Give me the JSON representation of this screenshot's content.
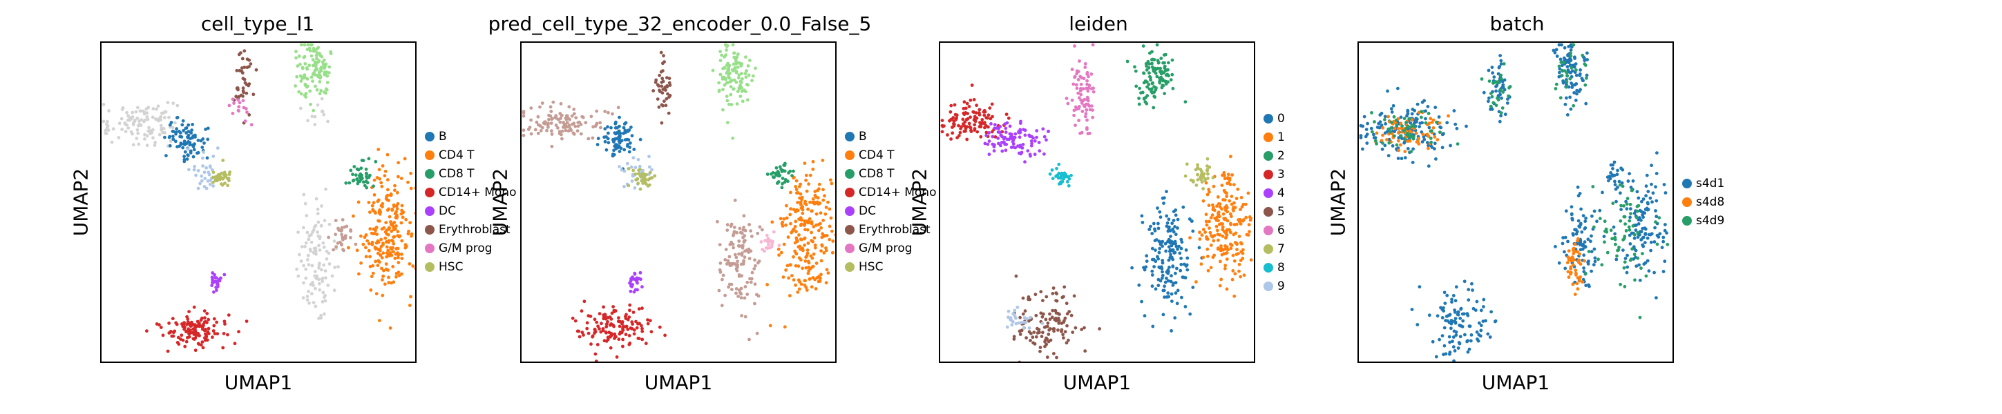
{
  "figure": {
    "panels": [
      {
        "title": "cell_type_l1",
        "xlabel": "UMAP1",
        "ylabel": "UMAP2",
        "legend": [
          {
            "label": "B",
            "color": "#1f77b4"
          },
          {
            "label": "CD4 T",
            "color": "#ff7f0e"
          },
          {
            "label": "CD8 T",
            "color": "#279e68"
          },
          {
            "label": "CD14+ Mono",
            "color": "#d62728"
          },
          {
            "label": "DC",
            "color": "#aa40fc"
          },
          {
            "label": "Erythroblast",
            "color": "#8c564b"
          },
          {
            "label": "G/M prog",
            "color": "#e377c2"
          },
          {
            "label": "HSC",
            "color": "#b5bd61"
          }
        ]
      },
      {
        "title": "pred_cell_type_32_encoder_0.0_False_5",
        "xlabel": "UMAP1",
        "ylabel": "UMAP2",
        "legend": [
          {
            "label": "B",
            "color": "#1f77b4"
          },
          {
            "label": "CD4 T",
            "color": "#ff7f0e"
          },
          {
            "label": "CD8 T",
            "color": "#279e68"
          },
          {
            "label": "CD14+ Mono",
            "color": "#d62728"
          },
          {
            "label": "DC",
            "color": "#aa40fc"
          },
          {
            "label": "Erythroblast",
            "color": "#8c564b"
          },
          {
            "label": "G/M prog",
            "color": "#e377c2"
          },
          {
            "label": "HSC",
            "color": "#b5bd61"
          }
        ]
      },
      {
        "title": "leiden",
        "xlabel": "UMAP1",
        "ylabel": "UMAP2",
        "legend": [
          {
            "label": "0",
            "color": "#1f77b4"
          },
          {
            "label": "1",
            "color": "#ff7f0e"
          },
          {
            "label": "2",
            "color": "#279e68"
          },
          {
            "label": "3",
            "color": "#d62728"
          },
          {
            "label": "4",
            "color": "#aa40fc"
          },
          {
            "label": "5",
            "color": "#8c564b"
          },
          {
            "label": "6",
            "color": "#e377c2"
          },
          {
            "label": "7",
            "color": "#b5bd61"
          },
          {
            "label": "8",
            "color": "#17becf"
          },
          {
            "label": "9",
            "color": "#aec7e8"
          }
        ]
      },
      {
        "title": "batch",
        "xlabel": "UMAP1",
        "ylabel": "UMAP2",
        "legend": [
          {
            "label": "s4d1",
            "color": "#1f77b4"
          },
          {
            "label": "s4d8",
            "color": "#ff7f0e"
          },
          {
            "label": "s4d9",
            "color": "#279e68"
          }
        ]
      }
    ]
  },
  "chart_data": [
    {
      "type": "scatter",
      "title": "cell_type_l1",
      "xlabel": "UMAP1",
      "ylabel": "UMAP2",
      "grid": false,
      "legend_position": "right",
      "clusters": [
        {
          "label": "unlabeled",
          "color": "#d3d3d3",
          "cx": 0.12,
          "cy": 0.75,
          "sx": 0.06,
          "sy": 0.03,
          "n": 110
        },
        {
          "label": "unlabeled",
          "color": "#d3d3d3",
          "cx": 0.68,
          "cy": 0.32,
          "sx": 0.03,
          "sy": 0.08,
          "n": 110
        },
        {
          "label": "unlabeled",
          "color": "#d3d3d3",
          "cx": 0.68,
          "cy": 0.78,
          "sx": 0.02,
          "sy": 0.02,
          "n": 12
        },
        {
          "label": "B",
          "color": "#1f77b4",
          "cx": 0.27,
          "cy": 0.7,
          "sx": 0.03,
          "sy": 0.03,
          "n": 80
        },
        {
          "label": "B",
          "color": "#aec7e8",
          "cx": 0.33,
          "cy": 0.6,
          "sx": 0.03,
          "sy": 0.03,
          "n": 30
        },
        {
          "label": "CD4 T",
          "color": "#ff7f0e",
          "cx": 0.9,
          "cy": 0.4,
          "sx": 0.04,
          "sy": 0.1,
          "n": 230
        },
        {
          "label": "CD8 T",
          "color": "#279e68",
          "cx": 0.82,
          "cy": 0.59,
          "sx": 0.02,
          "sy": 0.02,
          "n": 40
        },
        {
          "label": "CD8 T",
          "color": "#98df8a",
          "cx": 0.67,
          "cy": 0.91,
          "sx": 0.03,
          "sy": 0.05,
          "n": 110
        },
        {
          "label": "CD14+ Mono",
          "color": "#d62728",
          "cx": 0.3,
          "cy": 0.11,
          "sx": 0.06,
          "sy": 0.03,
          "n": 130
        },
        {
          "label": "DC",
          "color": "#aa40fc",
          "cx": 0.36,
          "cy": 0.26,
          "sx": 0.01,
          "sy": 0.015,
          "n": 25
        },
        {
          "label": "Erythroblast",
          "color": "#8c564b",
          "cx": 0.45,
          "cy": 0.87,
          "sx": 0.015,
          "sy": 0.05,
          "n": 40
        },
        {
          "label": "Erythroblast",
          "color": "#c49c94",
          "cx": 0.76,
          "cy": 0.4,
          "sx": 0.02,
          "sy": 0.03,
          "n": 30
        },
        {
          "label": "G/M prog",
          "color": "#e377c2",
          "cx": 0.44,
          "cy": 0.8,
          "sx": 0.015,
          "sy": 0.02,
          "n": 15
        },
        {
          "label": "HSC",
          "color": "#b5bd61",
          "cx": 0.38,
          "cy": 0.58,
          "sx": 0.015,
          "sy": 0.015,
          "n": 35
        }
      ]
    },
    {
      "type": "scatter",
      "title": "pred_cell_type_32_encoder_0.0_False_5",
      "xlabel": "UMAP1",
      "ylabel": "UMAP2",
      "grid": false,
      "legend_position": "right",
      "clusters": [
        {
          "label": "unlabeled",
          "color": "#c49c94",
          "cx": 0.13,
          "cy": 0.75,
          "sx": 0.06,
          "sy": 0.03,
          "n": 110
        },
        {
          "label": "unlabeled",
          "color": "#c49c94",
          "cx": 0.69,
          "cy": 0.32,
          "sx": 0.03,
          "sy": 0.08,
          "n": 120
        },
        {
          "label": "B",
          "color": "#1f77b4",
          "cx": 0.31,
          "cy": 0.7,
          "sx": 0.03,
          "sy": 0.03,
          "n": 80
        },
        {
          "label": "B",
          "color": "#aec7e8",
          "cx": 0.36,
          "cy": 0.6,
          "sx": 0.025,
          "sy": 0.03,
          "n": 30
        },
        {
          "label": "CD4 T",
          "color": "#ff7f0e",
          "cx": 0.9,
          "cy": 0.4,
          "sx": 0.04,
          "sy": 0.1,
          "n": 230
        },
        {
          "label": "CD8 T",
          "color": "#279e68",
          "cx": 0.81,
          "cy": 0.59,
          "sx": 0.02,
          "sy": 0.02,
          "n": 35
        },
        {
          "label": "CD8 T",
          "color": "#98df8a",
          "cx": 0.67,
          "cy": 0.9,
          "sx": 0.03,
          "sy": 0.05,
          "n": 110
        },
        {
          "label": "CD14+ Mono",
          "color": "#d62728",
          "cx": 0.3,
          "cy": 0.11,
          "sx": 0.06,
          "sy": 0.03,
          "n": 130
        },
        {
          "label": "DC",
          "color": "#aa40fc",
          "cx": 0.36,
          "cy": 0.26,
          "sx": 0.01,
          "sy": 0.015,
          "n": 25
        },
        {
          "label": "Erythroblast",
          "color": "#8c564b",
          "cx": 0.45,
          "cy": 0.86,
          "sx": 0.015,
          "sy": 0.05,
          "n": 40
        },
        {
          "label": "G/M prog",
          "color": "#f7b6d2",
          "cx": 0.78,
          "cy": 0.38,
          "sx": 0.015,
          "sy": 0.02,
          "n": 20
        },
        {
          "label": "HSC",
          "color": "#b5bd61",
          "cx": 0.38,
          "cy": 0.58,
          "sx": 0.015,
          "sy": 0.015,
          "n": 35
        }
      ]
    },
    {
      "type": "scatter",
      "title": "leiden",
      "xlabel": "UMAP1",
      "ylabel": "UMAP2",
      "grid": false,
      "legend_position": "right",
      "clusters": [
        {
          "label": "0",
          "color": "#1f77b4",
          "cx": 0.72,
          "cy": 0.33,
          "sx": 0.04,
          "sy": 0.08,
          "n": 170
        },
        {
          "label": "1",
          "color": "#ff7f0e",
          "cx": 0.9,
          "cy": 0.43,
          "sx": 0.04,
          "sy": 0.09,
          "n": 200
        },
        {
          "label": "2",
          "color": "#279e68",
          "cx": 0.68,
          "cy": 0.9,
          "sx": 0.03,
          "sy": 0.04,
          "n": 110
        },
        {
          "label": "3",
          "color": "#d62728",
          "cx": 0.1,
          "cy": 0.76,
          "sx": 0.05,
          "sy": 0.03,
          "n": 110
        },
        {
          "label": "4",
          "color": "#aa40fc",
          "cx": 0.23,
          "cy": 0.7,
          "sx": 0.05,
          "sy": 0.03,
          "n": 100
        },
        {
          "label": "5",
          "color": "#8c564b",
          "cx": 0.34,
          "cy": 0.12,
          "sx": 0.05,
          "sy": 0.05,
          "n": 120
        },
        {
          "label": "6",
          "color": "#e377c2",
          "cx": 0.45,
          "cy": 0.84,
          "sx": 0.02,
          "sy": 0.06,
          "n": 80
        },
        {
          "label": "7",
          "color": "#b5bd61",
          "cx": 0.82,
          "cy": 0.59,
          "sx": 0.02,
          "sy": 0.02,
          "n": 35
        },
        {
          "label": "8",
          "color": "#17becf",
          "cx": 0.38,
          "cy": 0.58,
          "sx": 0.015,
          "sy": 0.015,
          "n": 30
        },
        {
          "label": "9",
          "color": "#aec7e8",
          "cx": 0.25,
          "cy": 0.14,
          "sx": 0.03,
          "sy": 0.02,
          "n": 25
        }
      ]
    },
    {
      "type": "scatter",
      "title": "batch",
      "xlabel": "UMAP1",
      "ylabel": "UMAP2",
      "grid": false,
      "legend_position": "right",
      "clusters": [
        {
          "label": "s4d1",
          "color": "#1f77b4",
          "cx": 0.15,
          "cy": 0.73,
          "sx": 0.07,
          "sy": 0.04,
          "n": 160
        },
        {
          "label": "s4d1",
          "color": "#1f77b4",
          "cx": 0.44,
          "cy": 0.86,
          "sx": 0.015,
          "sy": 0.05,
          "n": 50
        },
        {
          "label": "s4d1",
          "color": "#1f77b4",
          "cx": 0.67,
          "cy": 0.9,
          "sx": 0.03,
          "sy": 0.05,
          "n": 90
        },
        {
          "label": "s4d1",
          "color": "#1f77b4",
          "cx": 0.9,
          "cy": 0.43,
          "sx": 0.04,
          "sy": 0.08,
          "n": 120
        },
        {
          "label": "s4d1",
          "color": "#1f77b4",
          "cx": 0.7,
          "cy": 0.38,
          "sx": 0.03,
          "sy": 0.07,
          "n": 90
        },
        {
          "label": "s4d1",
          "color": "#1f77b4",
          "cx": 0.32,
          "cy": 0.13,
          "sx": 0.05,
          "sy": 0.05,
          "n": 110
        },
        {
          "label": "s4d1",
          "color": "#1f77b4",
          "cx": 0.81,
          "cy": 0.59,
          "sx": 0.02,
          "sy": 0.02,
          "n": 25
        },
        {
          "label": "s4d8",
          "color": "#ff7f0e",
          "cx": 0.68,
          "cy": 0.3,
          "sx": 0.015,
          "sy": 0.04,
          "n": 45
        },
        {
          "label": "s4d8",
          "color": "#ff7f0e",
          "cx": 0.16,
          "cy": 0.73,
          "sx": 0.06,
          "sy": 0.03,
          "n": 70
        },
        {
          "label": "s4d9",
          "color": "#279e68",
          "cx": 0.85,
          "cy": 0.4,
          "sx": 0.05,
          "sy": 0.09,
          "n": 70
        },
        {
          "label": "s4d9",
          "color": "#279e68",
          "cx": 0.15,
          "cy": 0.73,
          "sx": 0.06,
          "sy": 0.03,
          "n": 50
        },
        {
          "label": "s4d9",
          "color": "#279e68",
          "cx": 0.44,
          "cy": 0.86,
          "sx": 0.015,
          "sy": 0.04,
          "n": 25
        },
        {
          "label": "s4d9",
          "color": "#279e68",
          "cx": 0.66,
          "cy": 0.9,
          "sx": 0.025,
          "sy": 0.04,
          "n": 25
        }
      ]
    }
  ]
}
